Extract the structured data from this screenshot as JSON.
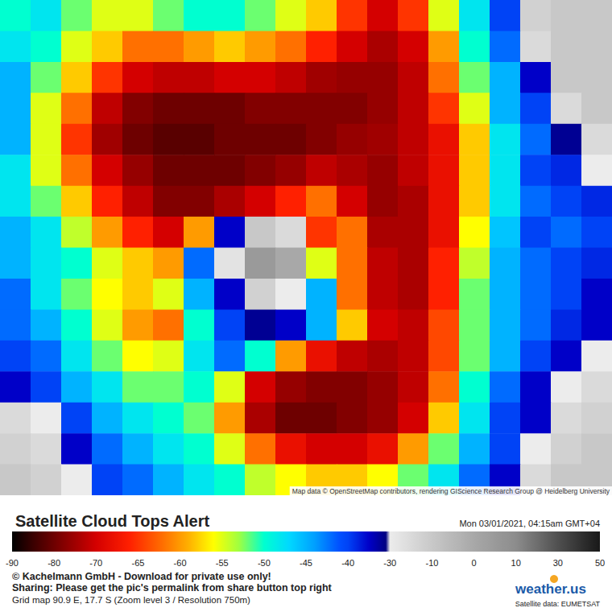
{
  "chart_data": {
    "type": "heatmap",
    "title": "Satellite Cloud Tops Alert",
    "date": "Mon 03/01/2021, 04:15am GMT+04",
    "credit": "© Kachelmann GmbH - Download for private use only!",
    "sharing": "Sharing: Please get the pic's permalink from share button top right",
    "grid_info": "Grid map 90.9 E, 17.7 S (Zoom level 3 / Resolution 750m)",
    "logo": "weather.us",
    "satellite_data": "Satellite data: EUMETSAT",
    "map_attribution": "Map data © OpenStreetMap contributors, rendering GIScience Research Group @ Heidelberg University",
    "colorbar_lim": [
      -90,
      50
    ],
    "colorbar_ticks": [
      -90,
      -80,
      -70,
      -65,
      -60,
      -55,
      -50,
      -45,
      -40,
      -30,
      -10,
      0,
      10,
      30,
      50
    ],
    "cells": [
      [
        -50,
        -48,
        -52,
        -55,
        -55,
        -52,
        -50,
        -50,
        -52,
        -55,
        -58,
        -65,
        -70,
        -65,
        -55,
        -48,
        -40,
        -15,
        -10,
        -10
      ],
      [
        -48,
        -50,
        -55,
        -58,
        -62,
        -62,
        -60,
        -58,
        -60,
        -62,
        -66,
        -70,
        -74,
        -70,
        -60,
        -50,
        -42,
        -20,
        -10,
        -10
      ],
      [
        -45,
        -52,
        -58,
        -65,
        -70,
        -72,
        -72,
        -70,
        -70,
        -72,
        -75,
        -76,
        -76,
        -72,
        -62,
        -52,
        -45,
        -35,
        -10,
        -10
      ],
      [
        -45,
        -55,
        -62,
        -72,
        -78,
        -80,
        -80,
        -80,
        -78,
        -78,
        -78,
        -78,
        -76,
        -72,
        -65,
        -55,
        -45,
        -40,
        -20,
        -10
      ],
      [
        -45,
        -55,
        -65,
        -75,
        -80,
        -82,
        -82,
        -80,
        -80,
        -80,
        -78,
        -76,
        -75,
        -72,
        -68,
        -58,
        -48,
        -42,
        -32,
        -20
      ],
      [
        -48,
        -55,
        -62,
        -70,
        -76,
        -80,
        -80,
        -80,
        -78,
        -76,
        -72,
        -74,
        -76,
        -72,
        -68,
        -58,
        -48,
        -40,
        -38,
        -30
      ],
      [
        -48,
        -52,
        -58,
        -66,
        -72,
        -78,
        -78,
        -74,
        -70,
        -66,
        -62,
        -70,
        -76,
        -74,
        -68,
        -58,
        -48,
        -42,
        -40,
        -38
      ],
      [
        -45,
        -48,
        -54,
        -60,
        -66,
        -70,
        -60,
        -35,
        -10,
        -20,
        -65,
        -62,
        -74,
        -74,
        -68,
        -56,
        -46,
        -40,
        -42,
        -40
      ],
      [
        -45,
        -48,
        -50,
        -55,
        -58,
        -60,
        -42,
        -25,
        5,
        0,
        -55,
        -62,
        -72,
        -74,
        -66,
        -54,
        -45,
        -42,
        -40,
        -38
      ],
      [
        -42,
        -48,
        -52,
        -56,
        -58,
        -55,
        -45,
        -35,
        -15,
        -30,
        -45,
        -62,
        -72,
        -74,
        -66,
        -52,
        -45,
        -42,
        -40,
        -35
      ],
      [
        -42,
        -45,
        -50,
        -55,
        -60,
        -62,
        -50,
        -40,
        -32,
        -35,
        -45,
        -58,
        -70,
        -72,
        -64,
        -52,
        -45,
        -42,
        -38,
        -35
      ],
      [
        -40,
        -42,
        -48,
        -52,
        -56,
        -55,
        -48,
        -42,
        -50,
        -60,
        -68,
        -72,
        -74,
        -72,
        -64,
        -52,
        -45,
        -40,
        -35,
        -30
      ],
      [
        -35,
        -40,
        -45,
        -48,
        -52,
        -52,
        -50,
        -55,
        -70,
        -76,
        -78,
        -78,
        -76,
        -72,
        -62,
        -50,
        -42,
        -35,
        -30,
        -20
      ],
      [
        -20,
        -30,
        -40,
        -45,
        -48,
        -50,
        -52,
        -60,
        -74,
        -80,
        -80,
        -78,
        -76,
        -70,
        -58,
        -48,
        -40,
        -35,
        -20,
        -15
      ],
      [
        -15,
        -20,
        -35,
        -42,
        -45,
        -48,
        -50,
        -55,
        -62,
        -68,
        -70,
        -70,
        -68,
        -60,
        -52,
        -45,
        -40,
        -30,
        -15,
        -10
      ],
      [
        -10,
        -15,
        -30,
        -40,
        -42,
        -45,
        -48,
        -50,
        -54,
        -56,
        -58,
        -58,
        -56,
        -52,
        -48,
        -42,
        -35,
        -20,
        -10,
        -10
      ]
    ]
  }
}
